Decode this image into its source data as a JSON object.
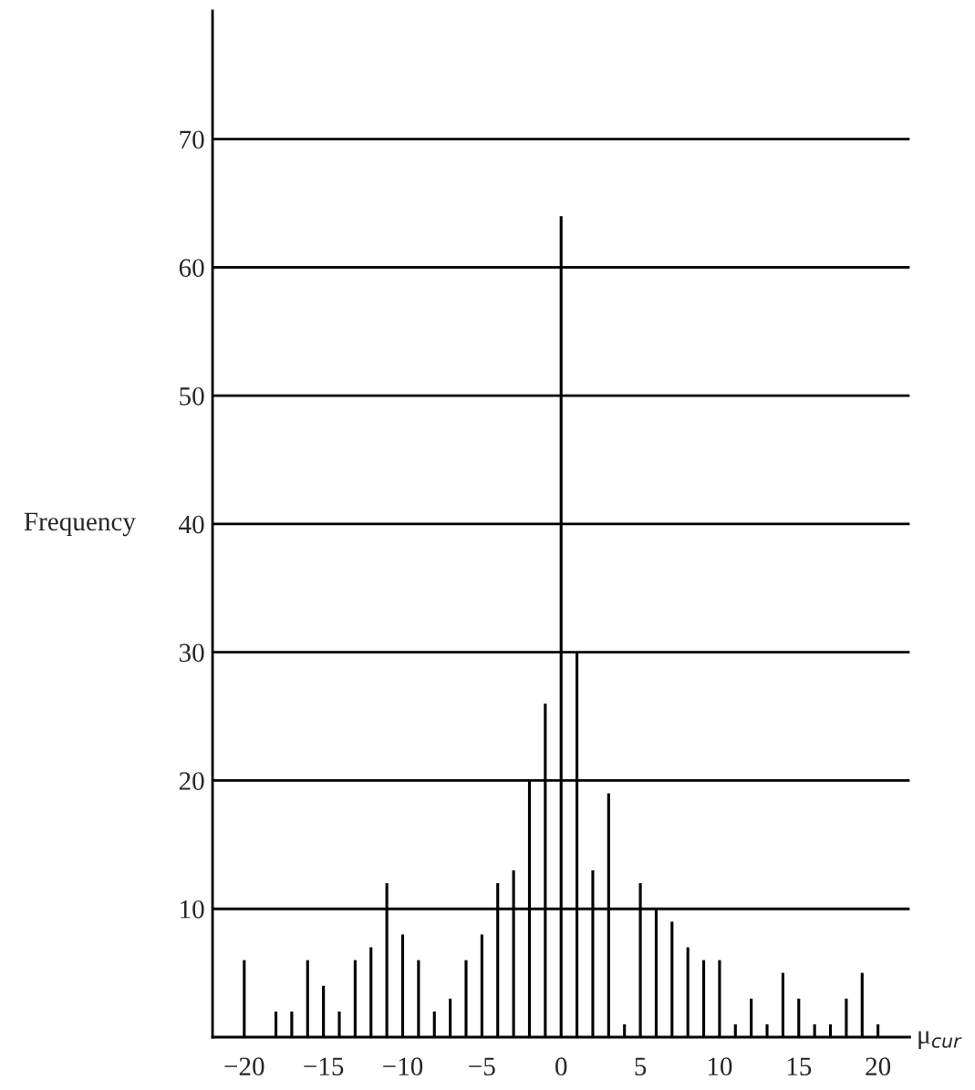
{
  "chart_data": {
    "type": "bar",
    "xlabel": "μ$_{cur}$",
    "ylabel": "Frequency",
    "x": [
      -20,
      -18,
      -17,
      -16,
      -15,
      -14,
      -13,
      -12,
      -11,
      -10,
      -9,
      -8,
      -7,
      -6,
      -5,
      -4,
      -3,
      -2,
      -1,
      0,
      1,
      2,
      3,
      4,
      5,
      6,
      7,
      8,
      9,
      10,
      11,
      12,
      13,
      14,
      15,
      16,
      17,
      18,
      19,
      20
    ],
    "values": [
      6,
      2,
      2,
      6,
      4,
      2,
      6,
      7,
      12,
      8,
      6,
      2,
      3,
      6,
      8,
      12,
      13,
      20,
      26,
      64,
      30,
      13,
      19,
      1,
      12,
      10,
      9,
      7,
      6,
      6,
      1,
      3,
      1,
      5,
      3,
      1,
      1,
      3,
      5,
      1
    ],
    "color": "#000000",
    "xlim": [
      -22,
      22
    ],
    "xticks": [
      {
        "value": -20,
        "label": "−20"
      },
      {
        "value": -15,
        "label": "−15"
      },
      {
        "value": -10,
        "label": "−10"
      },
      {
        "value": -5,
        "label": "−5"
      },
      0,
      5,
      10,
      15,
      20
    ],
    "ylim": [
      0,
      80
    ],
    "yticks": [
      10,
      20,
      30,
      40,
      50,
      60,
      70
    ],
    "grid": "y"
  }
}
